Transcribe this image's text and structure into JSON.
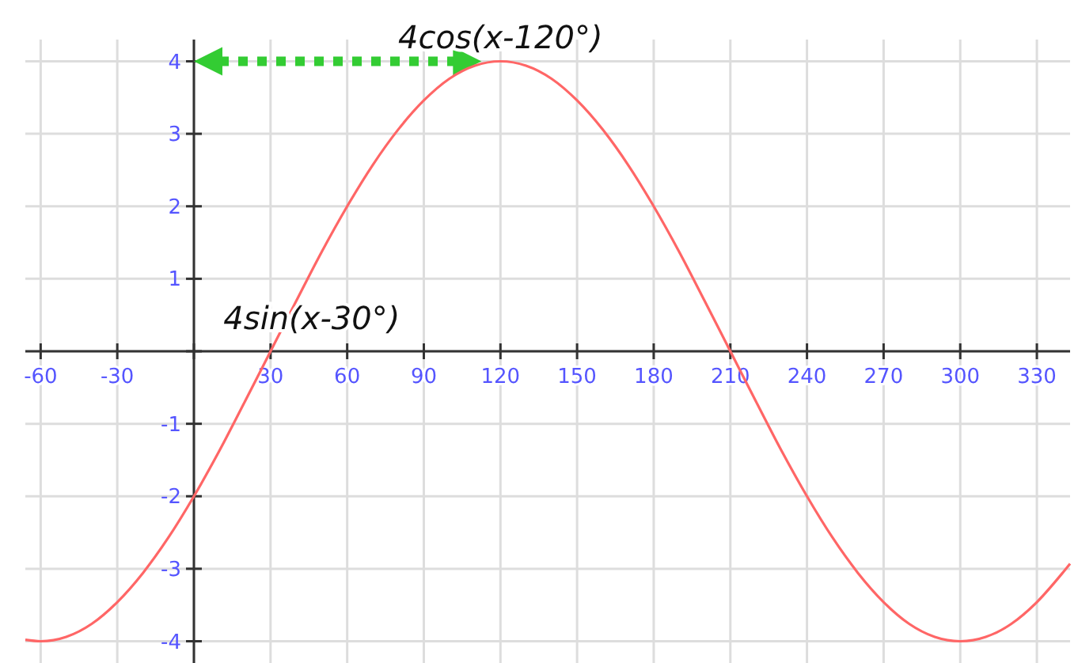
{
  "chart_data": {
    "type": "line",
    "x": [
      -66,
      -60,
      -50,
      -40,
      -30,
      -20,
      -10,
      0,
      10,
      20,
      30,
      40,
      50,
      60,
      70,
      80,
      90,
      100,
      110,
      120,
      130,
      140,
      150,
      160,
      170,
      180,
      190,
      200,
      210,
      220,
      230,
      240,
      250,
      260,
      270,
      280,
      290,
      300,
      310,
      320,
      330,
      340,
      343
    ],
    "series": [
      {
        "color": "#ff6666",
        "values": [
          -3.98,
          -4,
          -3.94,
          -3.76,
          -3.46,
          -3.06,
          -2.57,
          -2,
          -1.37,
          -0.69,
          0,
          0.69,
          1.37,
          2,
          2.57,
          3.06,
          3.46,
          3.76,
          3.94,
          4,
          3.94,
          3.76,
          3.46,
          3.06,
          2.57,
          2,
          1.37,
          0.69,
          0,
          -0.69,
          -1.37,
          -2,
          -2.57,
          -3.06,
          -3.46,
          -3.76,
          -3.94,
          -4,
          -3.94,
          -3.76,
          -3.46,
          -3.06,
          -2.93
        ]
      }
    ],
    "xlim": [
      -66,
      343
    ],
    "ylim": [
      -4.3,
      4.3
    ],
    "xticks": [
      -60,
      -30,
      {
        "value": 0,
        "label": null
      },
      30,
      60,
      90,
      120,
      150,
      180,
      210,
      240,
      270,
      300,
      330
    ],
    "yticks": [
      -4,
      -3,
      -2,
      -1,
      {
        "value": 0,
        "label": null
      },
      1,
      2,
      3,
      4
    ],
    "grid": true,
    "marker": "none",
    "line_style": "solid",
    "annotations": [
      {
        "text": "4cos(x-120°)",
        "x": 120,
        "y": 4
      },
      {
        "text": "4sin(x-30°)",
        "x": 30,
        "y": 0
      }
    ]
  }
}
